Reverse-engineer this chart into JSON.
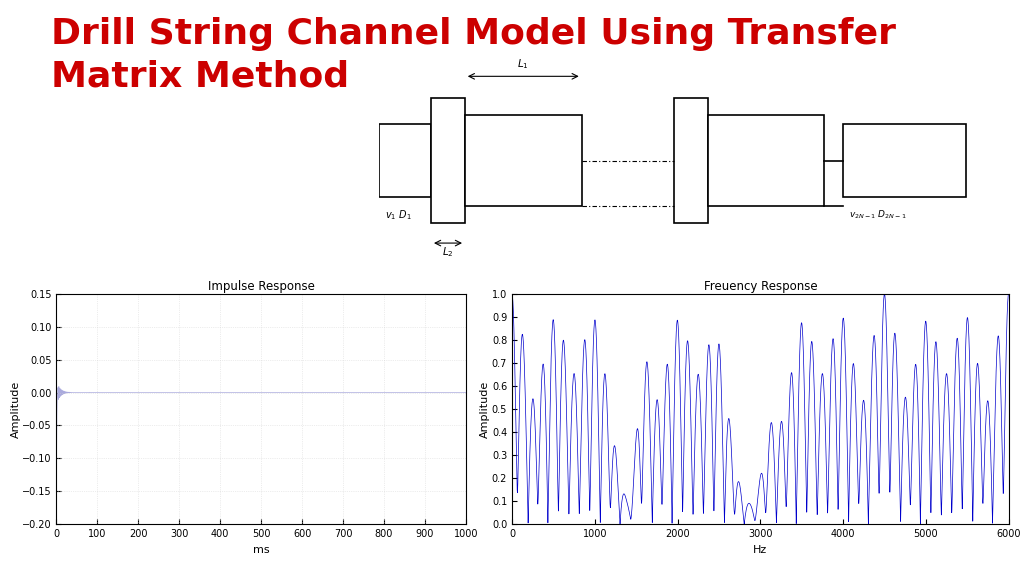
{
  "title": "Drill String Channel Model Using Transfer\nMatrix Method",
  "title_color": "#cc0000",
  "title_fontsize": 26,
  "bg_color": "#ffffff",
  "impulse_title": "Impulse Response",
  "impulse_xlabel": "ms",
  "impulse_ylabel": "Amplitude",
  "impulse_xlim": [
    0,
    1000
  ],
  "impulse_ylim": [
    -0.2,
    0.15
  ],
  "impulse_yticks": [
    0.15,
    0.1,
    0.05,
    0,
    -0.05,
    -0.1,
    -0.15,
    -0.2
  ],
  "impulse_xticks": [
    0,
    100,
    200,
    300,
    400,
    500,
    600,
    700,
    800,
    900,
    1000
  ],
  "freq_title": "Freuency Response",
  "freq_xlabel": "Hz",
  "freq_ylabel": "Amplitude",
  "freq_xlim": [
    0,
    6000
  ],
  "freq_ylim": [
    0,
    1.0
  ],
  "freq_yticks": [
    0,
    0.1,
    0.2,
    0.3,
    0.4,
    0.5,
    0.6,
    0.7,
    0.8,
    0.9,
    1.0
  ],
  "freq_xticks": [
    0,
    1000,
    2000,
    3000,
    4000,
    5000,
    6000
  ],
  "line_color_impulse": "#aaaadd",
  "line_color_freq": "#0000cc"
}
